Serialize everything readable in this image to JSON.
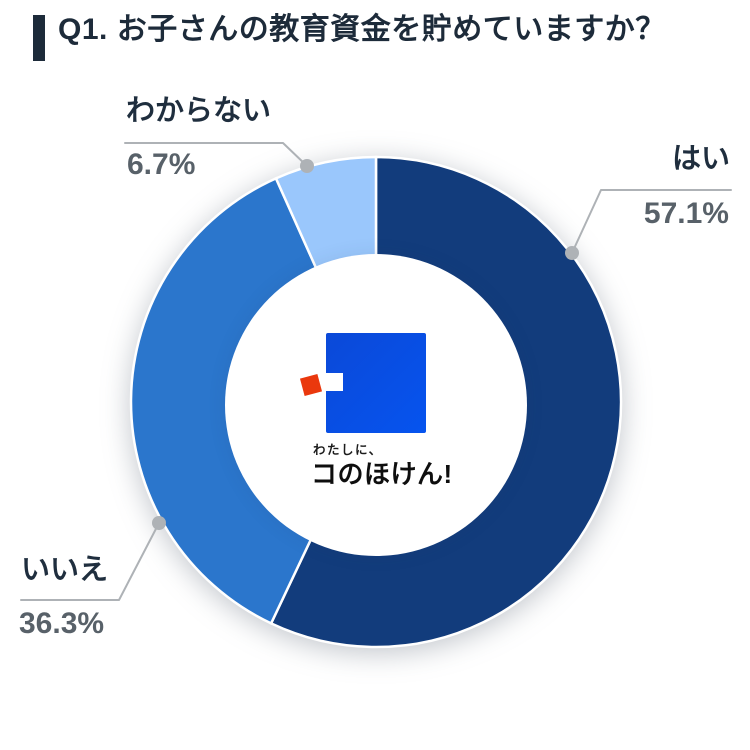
{
  "header": {
    "title": "Q1. お子さんの教育資金を貯めていますか？"
  },
  "chart_data": {
    "type": "pie",
    "donut": true,
    "title": "Q1. お子さんの教育資金を貯めていますか？",
    "start_angle_deg": 0,
    "direction": "clockwise",
    "legend_position": "outside-callouts",
    "slices": [
      {
        "label": "はい",
        "value": 57.1,
        "display": "57.1%",
        "color": "#123c7c"
      },
      {
        "label": "いいえ",
        "value": 36.3,
        "display": "36.3%",
        "color": "#2b76cc"
      },
      {
        "label": "わからない",
        "value": 6.7,
        "display": "6.7%",
        "color": "#9ac7fc"
      }
    ],
    "center_label": "わたしに、コのほけん!"
  },
  "logo": {
    "tagline": "わたしに、",
    "brand": "コのほけん!",
    "colors": {
      "square_start": "#0b49d8",
      "square_end": "#0654ef",
      "accent": "#ea380d"
    }
  },
  "styles": {
    "title_color": "#1d2b3a",
    "label_color": "#1f2e3e",
    "percent_color": "#586169",
    "leader_color": "#aeb2b6",
    "background": "#ffffff"
  }
}
